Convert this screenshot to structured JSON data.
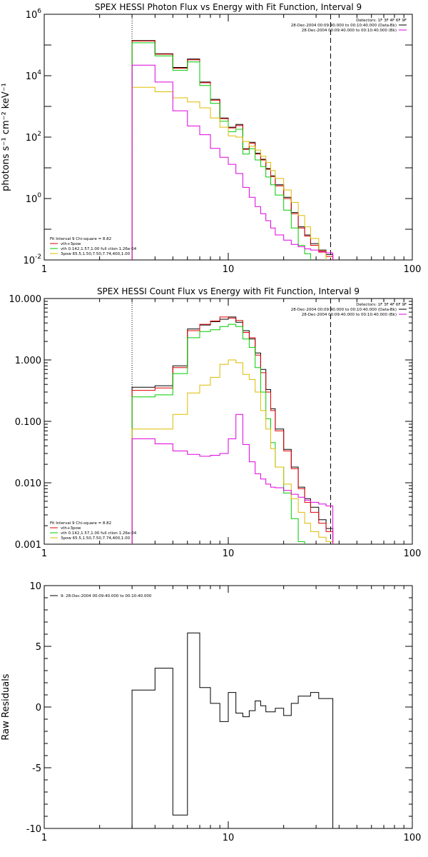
{
  "chart_data": [
    {
      "type": "line",
      "title": "SPEX HESSI Photon Flux vs Energy with Fit Function, Interval 9",
      "xlabel": "",
      "ylabel": "photons s⁻¹ cm⁻² keV⁻¹",
      "x_scale": "log",
      "y_scale": "log",
      "xlim": [
        1,
        100
      ],
      "ylim": [
        0.01,
        1000000
      ],
      "x_ticks": [
        "1",
        "10",
        "100"
      ],
      "y_ticks": [
        {
          "mantissa": "10",
          "exp": "-2",
          "value": 0.01
        },
        {
          "mantissa": "10",
          "exp": "0",
          "value": 1
        },
        {
          "mantissa": "10",
          "exp": "2",
          "value": 100
        },
        {
          "mantissa": "10",
          "exp": "4",
          "value": 10000
        },
        {
          "mantissa": "10",
          "exp": "6",
          "value": 1000000
        }
      ],
      "vlines": [
        {
          "x": 3.0,
          "style": "dotted"
        },
        {
          "x": 36.0,
          "style": "dashed"
        }
      ],
      "legend_tr": [
        {
          "text": "Detectors: 1F 3F 4F 6F 9F",
          "color": "#000000",
          "swatch": false
        },
        {
          "text": "28-Dec-2004 00:09:40.000 to 00:10:40.000 (Data-Bk)",
          "color": "#000000",
          "swatch": true
        },
        {
          "text": "28-Dec-2004 00:09:40.000 to 00:10:40.000 (Bk)",
          "color": "#dd00dd",
          "swatch": true
        }
      ],
      "legend_bl": [
        {
          "text": "Fit Interval 9   Chi-square = 8.82",
          "color": "#000000",
          "swatch": false
        },
        {
          "text": "vth+3pow",
          "color": "#dd0000",
          "swatch": true
        },
        {
          "text": "vth 0.142,1.57,1.00  full ction 1.26e-04",
          "color": "#00cc00",
          "swatch": true
        },
        {
          "text": "3pow 65.5,1.50,7.50,7.74,400,1.00",
          "color": "#ddbb00",
          "swatch": true
        }
      ],
      "bin_edges": [
        3,
        4,
        5,
        6,
        7,
        8,
        9,
        10,
        11,
        12,
        13,
        14,
        15,
        16,
        17,
        18,
        20,
        22,
        24,
        26,
        28,
        31,
        34,
        37
      ],
      "series": [
        {
          "name": "Data-Bk",
          "color": "#000000",
          "values": [
            140000,
            52000,
            18500,
            35000,
            6200,
            1700,
            420,
            210,
            260,
            42,
            68,
            30,
            19,
            9.5,
            5.5,
            2.8,
            1.1,
            0.35,
            0.12,
            0.065,
            0.034,
            0.021,
            0.015
          ]
        },
        {
          "name": "vth+3pow",
          "color": "#dd0000",
          "values": [
            135000,
            50000,
            17500,
            33000,
            5900,
            1600,
            400,
            200,
            240,
            40,
            63,
            28,
            18,
            9.0,
            5.2,
            2.6,
            1.0,
            0.32,
            0.11,
            0.06,
            0.03,
            0.018,
            0.013
          ]
        },
        {
          "name": "vth",
          "color": "#00cc00",
          "values": [
            118000,
            44000,
            15000,
            28000,
            4800,
            1250,
            330,
            150,
            180,
            28,
            42,
            18,
            11,
            5.0,
            2.8,
            1.3,
            0.42,
            0.11,
            0.03,
            0.016,
            0.008
          ]
        },
        {
          "name": "3pow",
          "color": "#ddbb00",
          "values": [
            4200,
            3000,
            1900,
            1400,
            900,
            420,
            210,
            110,
            100,
            72,
            50,
            38,
            24,
            15,
            8.2,
            4.5,
            1.9,
            0.75,
            0.28,
            0.12,
            0.05,
            0.02,
            0.0095
          ]
        },
        {
          "name": "Bk",
          "color": "#dd00dd",
          "values": [
            22000,
            6200,
            720,
            230,
            120,
            43,
            22,
            13,
            6.5,
            2.3,
            1.1,
            0.55,
            0.32,
            0.19,
            0.11,
            0.065,
            0.044,
            0.032,
            0.027,
            0.023,
            0.021,
            0.019,
            0.017
          ]
        }
      ]
    },
    {
      "type": "line",
      "title": "SPEX HESSI Count Flux vs Energy with Fit Function, Interval 9",
      "xlabel": "",
      "ylabel": "",
      "x_scale": "log",
      "y_scale": "log",
      "xlim": [
        1,
        100
      ],
      "ylim": [
        0.001,
        10
      ],
      "x_ticks": [
        "1",
        "10",
        "100"
      ],
      "y_ticks": [
        {
          "mantissa": "0.001",
          "value": 0.001
        },
        {
          "mantissa": "0.010",
          "value": 0.01
        },
        {
          "mantissa": "0.100",
          "value": 0.1
        },
        {
          "mantissa": "1.000",
          "value": 1
        },
        {
          "mantissa": "10.000",
          "value": 10
        }
      ],
      "vlines": [
        {
          "x": 3.0,
          "style": "dotted"
        },
        {
          "x": 36.0,
          "style": "dashed"
        }
      ],
      "legend_tr": [
        {
          "text": "Detectors: 1F 3F 4F 6F 9F",
          "color": "#000000",
          "swatch": false
        },
        {
          "text": "28-Dec-2004 00:09:40.000 to 00:10:40.000 (Data-Bk)",
          "color": "#000000",
          "swatch": true
        },
        {
          "text": "28-Dec-2004 00:09:40.000 to 00:10:40.000 (Bk)",
          "color": "#dd00dd",
          "swatch": true
        }
      ],
      "legend_bl": [
        {
          "text": "Fit Interval 9   Chi-square = 8.82",
          "color": "#000000",
          "swatch": false
        },
        {
          "text": "vth+3pow",
          "color": "#dd0000",
          "swatch": true
        },
        {
          "text": "vth 0.142,1.57,1.00  full ction 1.26e-04",
          "color": "#00cc00",
          "swatch": true
        },
        {
          "text": "3pow 65.5,1.50,7.50,7.74,400,1.00",
          "color": "#ddbb00",
          "swatch": true
        }
      ],
      "bin_edges": [
        3,
        4,
        5,
        6,
        7,
        8,
        9,
        10,
        11,
        12,
        13,
        14,
        15,
        16,
        17,
        18,
        20,
        22,
        24,
        26,
        28,
        31,
        34,
        37
      ],
      "series": [
        {
          "name": "Data-Bk",
          "color": "#000000",
          "values": [
            0.36,
            0.38,
            0.8,
            3.2,
            3.7,
            4.2,
            4.6,
            5.0,
            4.1,
            3.0,
            2.2,
            1.3,
            0.7,
            0.33,
            0.16,
            0.075,
            0.035,
            0.018,
            0.0085,
            0.0055,
            0.004,
            0.0025,
            0.0018
          ]
        },
        {
          "name": "vth+3pow",
          "color": "#dd0000",
          "values": [
            0.32,
            0.35,
            0.75,
            3.0,
            3.8,
            4.3,
            5.0,
            4.8,
            4.4,
            2.8,
            2.3,
            1.2,
            0.62,
            0.3,
            0.15,
            0.07,
            0.033,
            0.017,
            0.008,
            0.0048,
            0.0033,
            0.0022,
            0.0016
          ]
        },
        {
          "name": "vth",
          "color": "#00cc00",
          "values": [
            0.25,
            0.27,
            0.6,
            2.3,
            2.9,
            3.1,
            3.5,
            3.8,
            3.5,
            2.2,
            1.6,
            0.75,
            0.3,
            0.11,
            0.045,
            0.018,
            0.0068,
            0.0026,
            0.0011
          ]
        },
        {
          "name": "3pow",
          "color": "#ddbb00",
          "values": [
            0.075,
            0.075,
            0.13,
            0.29,
            0.39,
            0.52,
            0.85,
            1.0,
            0.9,
            0.58,
            0.48,
            0.3,
            0.15,
            0.075,
            0.036,
            0.018,
            0.0095,
            0.0055,
            0.0033,
            0.0022,
            0.0016,
            0.0013,
            0.0011
          ]
        },
        {
          "name": "Bk",
          "color": "#dd00dd",
          "values": [
            0.052,
            0.043,
            0.033,
            0.029,
            0.027,
            0.028,
            0.03,
            0.052,
            0.13,
            0.042,
            0.022,
            0.014,
            0.0115,
            0.0095,
            0.0085,
            0.0083,
            0.0075,
            0.0065,
            0.0058,
            0.0052,
            0.0048,
            0.0045,
            0.0042
          ]
        }
      ]
    },
    {
      "type": "line",
      "title": "",
      "xlabel": "",
      "ylabel": "Raw Residuals",
      "x_scale": "log",
      "y_scale": "linear",
      "xlim": [
        1,
        100
      ],
      "ylim": [
        -10,
        10
      ],
      "x_ticks": [
        "1",
        "10",
        "100"
      ],
      "y_ticks": [
        {
          "mantissa": "-10",
          "value": -10
        },
        {
          "mantissa": "-5",
          "value": -5
        },
        {
          "mantissa": "0",
          "value": 0
        },
        {
          "mantissa": "5",
          "value": 5
        },
        {
          "mantissa": "10",
          "value": 10
        }
      ],
      "vlines": [],
      "legend_tl": [
        {
          "text": "9: 28-Dec-2004 00:09:40.000 to 00:10:40.000",
          "color": "#000000",
          "swatch": true
        }
      ],
      "bin_edges": [
        3,
        4,
        5,
        6,
        7,
        8,
        9,
        10,
        11,
        12,
        13,
        14,
        15,
        16,
        17,
        18,
        20,
        22,
        24,
        26,
        28,
        31,
        34,
        37
      ],
      "series": [
        {
          "name": "residuals",
          "color": "#000000",
          "values": [
            1.4,
            3.2,
            -8.9,
            6.1,
            1.6,
            0.3,
            -1.2,
            1.2,
            -0.5,
            -0.8,
            -0.3,
            0.5,
            0.1,
            -0.4,
            -0.4,
            -0.1,
            -0.7,
            0.3,
            0.9,
            0.9,
            1.2,
            0.7,
            0.7
          ]
        }
      ]
    }
  ]
}
